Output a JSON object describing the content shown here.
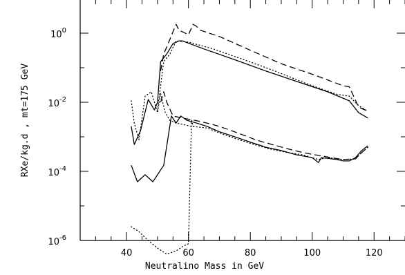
{
  "chart_data": {
    "type": "line",
    "xlabel": "Neutralino Mass in GeV",
    "ylabel": "RXe/kg.d , mt=175 GeV",
    "xlim": [
      25,
      130
    ],
    "ylim_log10": [
      -6,
      1
    ],
    "y_scale": "log",
    "x_ticks": [
      40,
      60,
      80,
      100,
      120
    ],
    "y_ticks": [
      {
        "mantissa": "10",
        "exponent": "0",
        "log10": 0
      },
      {
        "mantissa": "10",
        "exponent": "-2",
        "log10": -2
      },
      {
        "mantissa": "10",
        "exponent": "-4",
        "log10": -4
      },
      {
        "mantissa": "10",
        "exponent": "-6",
        "log10": -6
      }
    ],
    "series": [
      {
        "style": "solid",
        "points": [
          [
            41.5,
            0.002
          ],
          [
            42.5,
            0.0006
          ],
          [
            44.5,
            0.0015
          ],
          [
            47,
            0.012
          ],
          [
            49,
            0.006
          ],
          [
            50,
            0.01
          ],
          [
            51,
            0.15
          ],
          [
            53,
            0.25
          ],
          [
            55,
            0.5
          ],
          [
            57,
            0.6
          ],
          [
            58,
            0.6
          ],
          [
            65,
            0.35
          ],
          [
            75,
            0.17
          ],
          [
            85,
            0.08
          ],
          [
            95,
            0.04
          ],
          [
            105,
            0.02
          ],
          [
            112,
            0.011
          ],
          [
            115,
            0.005
          ],
          [
            118,
            0.0035
          ]
        ]
      },
      {
        "style": "dashed",
        "points": [
          [
            51,
            0.08
          ],
          [
            52,
            0.25
          ],
          [
            53,
            0.4
          ],
          [
            55,
            1.1
          ],
          [
            56,
            1.8
          ],
          [
            57,
            1.2
          ],
          [
            58,
            1.1
          ],
          [
            60,
            0.9
          ],
          [
            61.5,
            1.8
          ],
          [
            62.5,
            1.6
          ],
          [
            64,
            1.2
          ],
          [
            70,
            0.8
          ],
          [
            80,
            0.32
          ],
          [
            90,
            0.13
          ],
          [
            100,
            0.065
          ],
          [
            110,
            0.03
          ],
          [
            112,
            0.028
          ],
          [
            115,
            0.0072
          ],
          [
            118,
            0.0055
          ]
        ]
      },
      {
        "style": "dotted",
        "points": [
          [
            50,
            0.006
          ],
          [
            52,
            0.15
          ],
          [
            54,
            0.25
          ],
          [
            56,
            0.6
          ],
          [
            60,
            0.55
          ],
          [
            68,
            0.35
          ],
          [
            78,
            0.17
          ],
          [
            88,
            0.08
          ],
          [
            98,
            0.035
          ],
          [
            108,
            0.017
          ],
          [
            112,
            0.015
          ],
          [
            115,
            0.008
          ],
          [
            118,
            0.0055
          ]
        ]
      },
      {
        "style": "solid",
        "points": [
          [
            41.5,
            0.00015
          ],
          [
            43.5,
            5e-05
          ],
          [
            46,
            8e-05
          ],
          [
            48.5,
            5e-05
          ],
          [
            52,
            0.00015
          ],
          [
            54.5,
            0.004
          ],
          [
            56,
            0.0025
          ],
          [
            57.5,
            0.004
          ],
          [
            59.5,
            0.003
          ],
          [
            62,
            0.0026
          ],
          [
            66,
            0.002
          ],
          [
            70,
            0.0014
          ],
          [
            75,
            0.001
          ],
          [
            80,
            0.0007
          ],
          [
            85,
            0.0005
          ],
          [
            90,
            0.0004
          ],
          [
            95,
            0.0003
          ],
          [
            100,
            0.00025
          ],
          [
            102,
            0.00018
          ],
          [
            103,
            0.00025
          ],
          [
            108,
            0.00022
          ],
          [
            110,
            0.0002
          ],
          [
            112,
            0.0002
          ],
          [
            114,
            0.00025
          ],
          [
            116,
            0.0004
          ],
          [
            118,
            0.00055
          ]
        ]
      },
      {
        "style": "dashed",
        "points": [
          [
            51,
            0.01
          ],
          [
            52,
            0.02
          ],
          [
            53,
            0.01
          ],
          [
            55,
            0.004
          ],
          [
            58,
            0.0035
          ],
          [
            62,
            0.003
          ],
          [
            66,
            0.0025
          ],
          [
            70,
            0.002
          ],
          [
            74,
            0.0015
          ],
          [
            78,
            0.0011
          ],
          [
            82,
            0.0008
          ],
          [
            87,
            0.0006
          ],
          [
            92,
            0.00045
          ],
          [
            97,
            0.00035
          ],
          [
            101,
            0.0003
          ],
          [
            103,
            0.00028
          ],
          [
            106,
            0.00025
          ],
          [
            110,
            0.00022
          ],
          [
            114,
            0.00023
          ],
          [
            116,
            0.00035
          ],
          [
            118,
            0.0005
          ]
        ]
      },
      {
        "style": "dotted",
        "points": [
          [
            41.5,
            0.011
          ],
          [
            42.5,
            0.0025
          ],
          [
            44,
            0.0008
          ],
          [
            46,
            0.015
          ],
          [
            48,
            0.02
          ],
          [
            50,
            0.005
          ],
          [
            51,
            0.018
          ],
          [
            52.5,
            0.005
          ],
          [
            54,
            0.003
          ],
          [
            56,
            0.0025
          ],
          [
            58,
            0.0023
          ],
          [
            61,
            0.002
          ],
          [
            66,
            0.0018
          ],
          [
            70,
            0.0013
          ],
          [
            75,
            0.0009
          ],
          [
            80,
            0.00065
          ],
          [
            86,
            0.00045
          ],
          [
            92,
            0.00035
          ],
          [
            97,
            0.0003
          ],
          [
            102,
            0.00022
          ],
          [
            105,
            0.00025
          ],
          [
            110,
            0.00022
          ],
          [
            114,
            0.00023
          ],
          [
            116,
            0.00035
          ],
          [
            118,
            0.0005
          ]
        ]
      },
      {
        "style": "dotted",
        "points": [
          [
            41.5,
            2.5e-06
          ],
          [
            44,
            1.8e-06
          ],
          [
            47,
            1e-06
          ],
          [
            50,
            6e-07
          ],
          [
            53,
            4e-07
          ],
          [
            56,
            5e-07
          ],
          [
            58.5,
            7e-07
          ],
          [
            60,
            8e-07
          ],
          [
            61,
            0.003
          ],
          [
            61.5,
            0.002
          ]
        ]
      }
    ]
  }
}
